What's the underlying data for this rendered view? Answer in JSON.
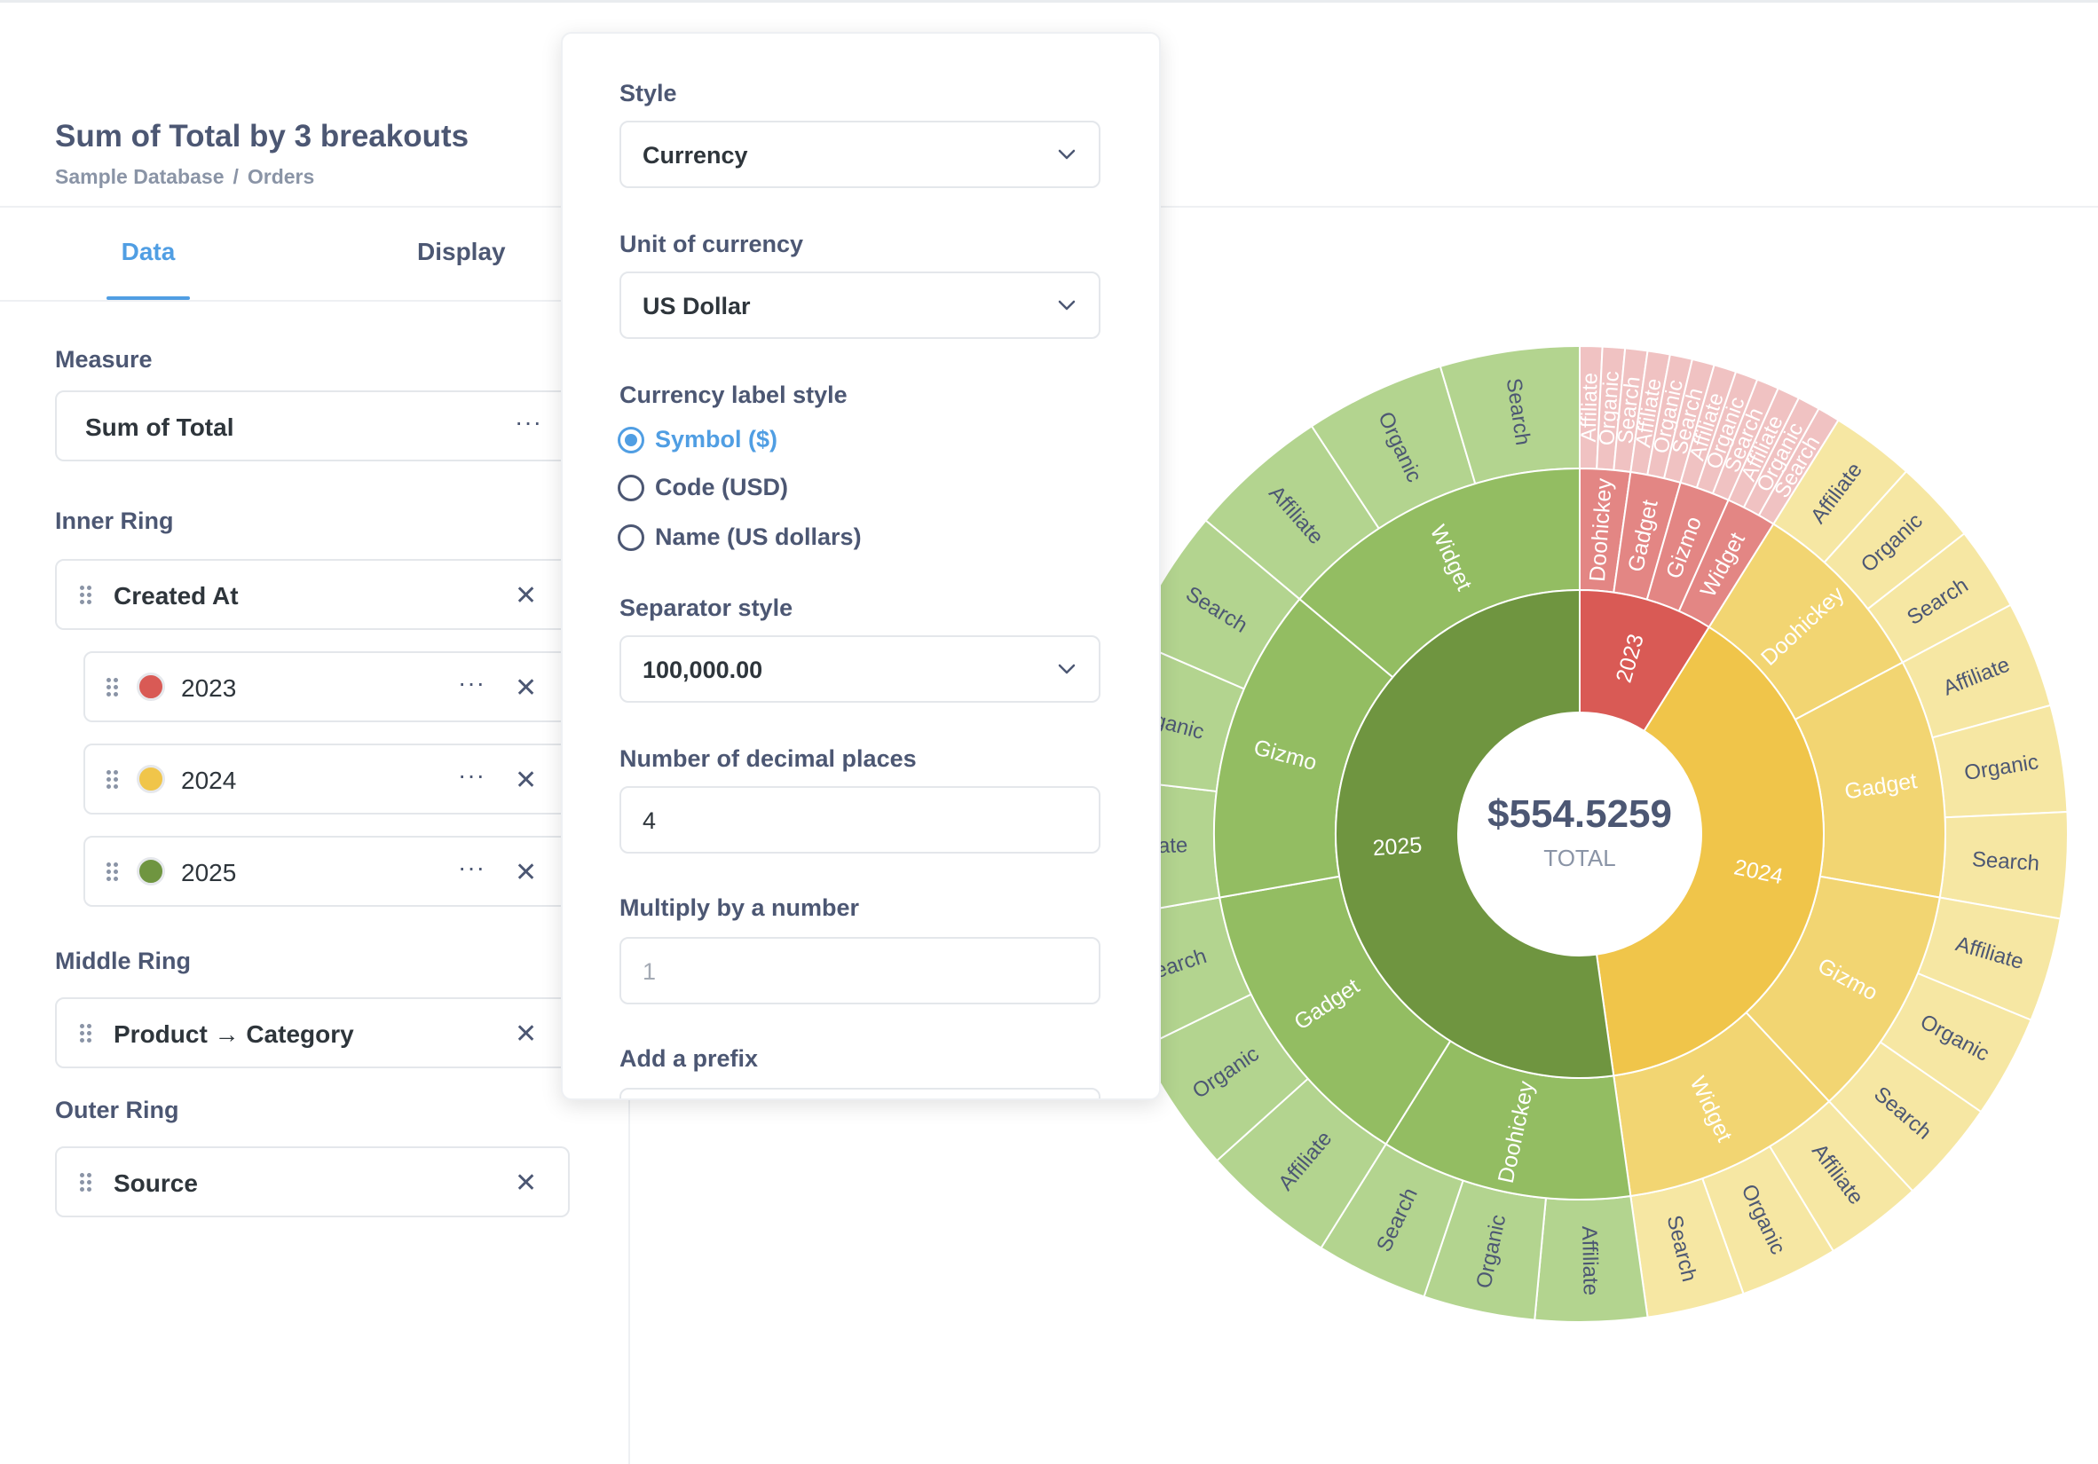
{
  "header": {
    "title": "Sum of Total by 3 breakouts",
    "breadcrumb": {
      "database": "Sample Database",
      "separator": "/",
      "table": "Orders"
    }
  },
  "tabs": {
    "data": "Data",
    "display": "Display"
  },
  "sidebar": {
    "measure": {
      "label": "Measure",
      "value": "Sum of Total"
    },
    "inner_ring": {
      "label": "Inner Ring",
      "field": "Created At",
      "values": [
        {
          "label": "2023",
          "color": "#d95a55"
        },
        {
          "label": "2024",
          "color": "#f0c54a"
        },
        {
          "label": "2025",
          "color": "#6f9540"
        }
      ]
    },
    "middle_ring": {
      "label": "Middle Ring",
      "field": "Product → Category"
    },
    "outer_ring": {
      "label": "Outer Ring",
      "field": "Source"
    }
  },
  "popover": {
    "style": {
      "label": "Style",
      "value": "Currency"
    },
    "unit": {
      "label": "Unit of currency",
      "value": "US Dollar"
    },
    "currency_label_style": {
      "label": "Currency label style",
      "options": [
        {
          "label": "Symbol ($)",
          "selected": true
        },
        {
          "label": "Code (USD)",
          "selected": false
        },
        {
          "label": "Name (US dollars)",
          "selected": false
        }
      ]
    },
    "separator": {
      "label": "Separator style",
      "value": "100,000.00"
    },
    "decimals": {
      "label": "Number of decimal places",
      "value": "4"
    },
    "multiply": {
      "label": "Multiply by a number",
      "placeholder": "1"
    },
    "prefix": {
      "label": "Add a prefix"
    }
  },
  "chart_data": {
    "type": "sunburst",
    "center_value": "$554.5259",
    "center_label": "TOTAL",
    "colors": {
      "2023": "#d95a55",
      "2024": "#f0c54a",
      "2025": "#6f9540"
    },
    "inner": [
      {
        "label": "2023",
        "value": 32
      },
      {
        "label": "2024",
        "value": 140
      },
      {
        "label": "2025",
        "value": 188
      }
    ],
    "middle": [
      {
        "year": "2023",
        "label": "Doohickey",
        "value": 8
      },
      {
        "year": "2023",
        "label": "Gadget",
        "value": 8
      },
      {
        "year": "2023",
        "label": "Gizmo",
        "value": 8
      },
      {
        "year": "2023",
        "label": "Widget",
        "value": 8
      },
      {
        "year": "2024",
        "label": "Doohickey",
        "value": 30
      },
      {
        "year": "2024",
        "label": "Gadget",
        "value": 38
      },
      {
        "year": "2024",
        "label": "Gizmo",
        "value": 37
      },
      {
        "year": "2024",
        "label": "Widget",
        "value": 35
      },
      {
        "year": "2025",
        "label": "Doohickey",
        "value": 40
      },
      {
        "year": "2025",
        "label": "Gadget",
        "value": 48
      },
      {
        "year": "2025",
        "label": "Gizmo",
        "value": 50
      },
      {
        "year": "2025",
        "label": "Widget",
        "value": 50
      }
    ],
    "outer": [
      {
        "label": "Affiliate",
        "value": 2.67
      },
      {
        "label": "Organic",
        "value": 2.67
      },
      {
        "label": "Search",
        "value": 2.66
      },
      {
        "label": "Affiliate",
        "value": 2.67
      },
      {
        "label": "Organic",
        "value": 2.67
      },
      {
        "label": "Search",
        "value": 2.66
      },
      {
        "label": "Affiliate",
        "value": 2.67
      },
      {
        "label": "Organic",
        "value": 2.67
      },
      {
        "label": "Search",
        "value": 2.66
      },
      {
        "label": "Affiliate",
        "value": 2.67
      },
      {
        "label": "Organic",
        "value": 2.67
      },
      {
        "label": "Search",
        "value": 2.66
      },
      {
        "label": "Affiliate",
        "value": 10
      },
      {
        "label": "Organic",
        "value": 10
      },
      {
        "label": "Search",
        "value": 10
      },
      {
        "label": "Affiliate",
        "value": 12.7
      },
      {
        "label": "Organic",
        "value": 12.7
      },
      {
        "label": "Search",
        "value": 12.6
      },
      {
        "label": "Affiliate",
        "value": 12.4
      },
      {
        "label": "Organic",
        "value": 12.3
      },
      {
        "label": "Search",
        "value": 12.3
      },
      {
        "label": "Affiliate",
        "value": 11.7
      },
      {
        "label": "Organic",
        "value": 11.7
      },
      {
        "label": "Search",
        "value": 11.6
      },
      {
        "label": "Affiliate",
        "value": 13.3
      },
      {
        "label": "Organic",
        "value": 13.3
      },
      {
        "label": "Search",
        "value": 13.4
      },
      {
        "label": "Affiliate",
        "value": 16
      },
      {
        "label": "Organic",
        "value": 16
      },
      {
        "label": "Search",
        "value": 16
      },
      {
        "label": "Affiliate",
        "value": 16.7
      },
      {
        "label": "Organic",
        "value": 16.7
      },
      {
        "label": "Search",
        "value": 16.6
      },
      {
        "label": "Affiliate",
        "value": 16.7
      },
      {
        "label": "Organic",
        "value": 16.7
      },
      {
        "label": "Search",
        "value": 16.6
      }
    ]
  }
}
